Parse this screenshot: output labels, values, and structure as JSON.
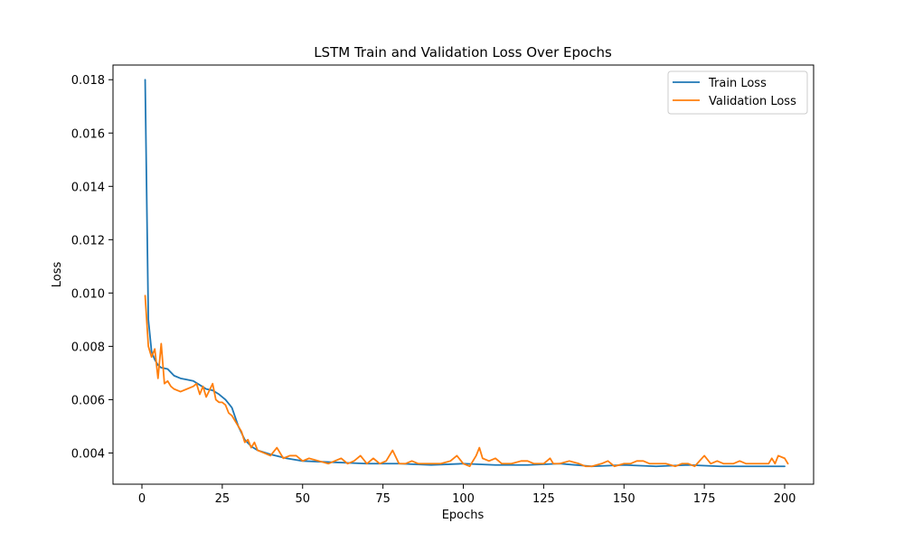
{
  "chart_data": {
    "type": "line",
    "title": "LSTM Train and Validation Loss Over Epochs",
    "xlabel": "Epochs",
    "ylabel": "Loss",
    "xlim": [
      -9,
      209
    ],
    "ylim": [
      0.00283,
      0.01855
    ],
    "xticks": [
      0,
      25,
      50,
      75,
      100,
      125,
      150,
      175,
      200
    ],
    "xtick_labels": [
      "0",
      "25",
      "50",
      "75",
      "100",
      "125",
      "150",
      "175",
      "200"
    ],
    "yticks": [
      0.004,
      0.006,
      0.008,
      0.01,
      0.012,
      0.014,
      0.016,
      0.018
    ],
    "ytick_labels": [
      "0.004",
      "0.006",
      "0.008",
      "0.010",
      "0.012",
      "0.014",
      "0.016",
      "0.018"
    ],
    "grid": false,
    "legend_position": "top-right",
    "series": [
      {
        "name": "Train Loss",
        "color": "#1f77b4",
        "points": [
          [
            1,
            0.018
          ],
          [
            2,
            0.009
          ],
          [
            3,
            0.0078
          ],
          [
            4,
            0.0075
          ],
          [
            5,
            0.0073
          ],
          [
            6,
            0.0072
          ],
          [
            8,
            0.00715
          ],
          [
            10,
            0.0069
          ],
          [
            12,
            0.0068
          ],
          [
            14,
            0.00675
          ],
          [
            16,
            0.0067
          ],
          [
            18,
            0.00655
          ],
          [
            20,
            0.0064
          ],
          [
            22,
            0.00635
          ],
          [
            24,
            0.0062
          ],
          [
            26,
            0.006
          ],
          [
            28,
            0.0057
          ],
          [
            30,
            0.005
          ],
          [
            32,
            0.0045
          ],
          [
            34,
            0.00425
          ],
          [
            36,
            0.0041
          ],
          [
            40,
            0.00395
          ],
          [
            45,
            0.0038
          ],
          [
            50,
            0.0037
          ],
          [
            60,
            0.00365
          ],
          [
            70,
            0.0036
          ],
          [
            80,
            0.0036
          ],
          [
            90,
            0.00355
          ],
          [
            100,
            0.0036
          ],
          [
            110,
            0.00355
          ],
          [
            120,
            0.00355
          ],
          [
            130,
            0.0036
          ],
          [
            140,
            0.0035
          ],
          [
            150,
            0.00355
          ],
          [
            160,
            0.0035
          ],
          [
            170,
            0.00355
          ],
          [
            180,
            0.0035
          ],
          [
            190,
            0.0035
          ],
          [
            200,
            0.0035
          ]
        ]
      },
      {
        "name": "Validation Loss",
        "color": "#ff7f0e",
        "points": [
          [
            1,
            0.0099
          ],
          [
            2,
            0.008
          ],
          [
            3,
            0.0076
          ],
          [
            4,
            0.0079
          ],
          [
            5,
            0.0068
          ],
          [
            6,
            0.0081
          ],
          [
            7,
            0.0066
          ],
          [
            8,
            0.0067
          ],
          [
            9,
            0.0065
          ],
          [
            10,
            0.0064
          ],
          [
            12,
            0.0063
          ],
          [
            14,
            0.0064
          ],
          [
            16,
            0.0065
          ],
          [
            17,
            0.0066
          ],
          [
            18,
            0.0062
          ],
          [
            19,
            0.0065
          ],
          [
            20,
            0.0061
          ],
          [
            22,
            0.0066
          ],
          [
            23,
            0.006
          ],
          [
            24,
            0.0059
          ],
          [
            25,
            0.0059
          ],
          [
            26,
            0.0058
          ],
          [
            27,
            0.0055
          ],
          [
            28,
            0.0054
          ],
          [
            30,
            0.005
          ],
          [
            31,
            0.0048
          ],
          [
            32,
            0.0044
          ],
          [
            33,
            0.0045
          ],
          [
            34,
            0.0042
          ],
          [
            35,
            0.0044
          ],
          [
            36,
            0.0041
          ],
          [
            38,
            0.004
          ],
          [
            40,
            0.0039
          ],
          [
            42,
            0.0042
          ],
          [
            44,
            0.0038
          ],
          [
            46,
            0.0039
          ],
          [
            48,
            0.0039
          ],
          [
            50,
            0.0037
          ],
          [
            52,
            0.0038
          ],
          [
            55,
            0.0037
          ],
          [
            58,
            0.0036
          ],
          [
            60,
            0.0037
          ],
          [
            62,
            0.0038
          ],
          [
            64,
            0.0036
          ],
          [
            66,
            0.0037
          ],
          [
            68,
            0.0039
          ],
          [
            70,
            0.0036
          ],
          [
            72,
            0.0038
          ],
          [
            74,
            0.0036
          ],
          [
            76,
            0.0037
          ],
          [
            78,
            0.0041
          ],
          [
            80,
            0.0036
          ],
          [
            82,
            0.0036
          ],
          [
            84,
            0.0037
          ],
          [
            86,
            0.0036
          ],
          [
            88,
            0.0036
          ],
          [
            90,
            0.0036
          ],
          [
            93,
            0.0036
          ],
          [
            96,
            0.0037
          ],
          [
            98,
            0.0039
          ],
          [
            100,
            0.0036
          ],
          [
            102,
            0.0035
          ],
          [
            104,
            0.0039
          ],
          [
            105,
            0.0042
          ],
          [
            106,
            0.0038
          ],
          [
            108,
            0.0037
          ],
          [
            110,
            0.0038
          ],
          [
            112,
            0.0036
          ],
          [
            115,
            0.0036
          ],
          [
            118,
            0.0037
          ],
          [
            120,
            0.0037
          ],
          [
            122,
            0.0036
          ],
          [
            125,
            0.0036
          ],
          [
            127,
            0.0038
          ],
          [
            128,
            0.0036
          ],
          [
            130,
            0.0036
          ],
          [
            133,
            0.0037
          ],
          [
            136,
            0.0036
          ],
          [
            138,
            0.0035
          ],
          [
            140,
            0.0035
          ],
          [
            143,
            0.0036
          ],
          [
            145,
            0.0037
          ],
          [
            147,
            0.0035
          ],
          [
            150,
            0.0036
          ],
          [
            152,
            0.0036
          ],
          [
            154,
            0.0037
          ],
          [
            156,
            0.0037
          ],
          [
            158,
            0.0036
          ],
          [
            160,
            0.0036
          ],
          [
            163,
            0.0036
          ],
          [
            166,
            0.0035
          ],
          [
            168,
            0.0036
          ],
          [
            170,
            0.0036
          ],
          [
            172,
            0.0035
          ],
          [
            175,
            0.0039
          ],
          [
            177,
            0.0036
          ],
          [
            179,
            0.0037
          ],
          [
            181,
            0.0036
          ],
          [
            184,
            0.0036
          ],
          [
            186,
            0.0037
          ],
          [
            188,
            0.0036
          ],
          [
            190,
            0.0036
          ],
          [
            193,
            0.0036
          ],
          [
            195,
            0.0036
          ],
          [
            196,
            0.0038
          ],
          [
            197,
            0.0036
          ],
          [
            198,
            0.0039
          ],
          [
            200,
            0.0038
          ],
          [
            201,
            0.0036
          ]
        ]
      }
    ]
  }
}
